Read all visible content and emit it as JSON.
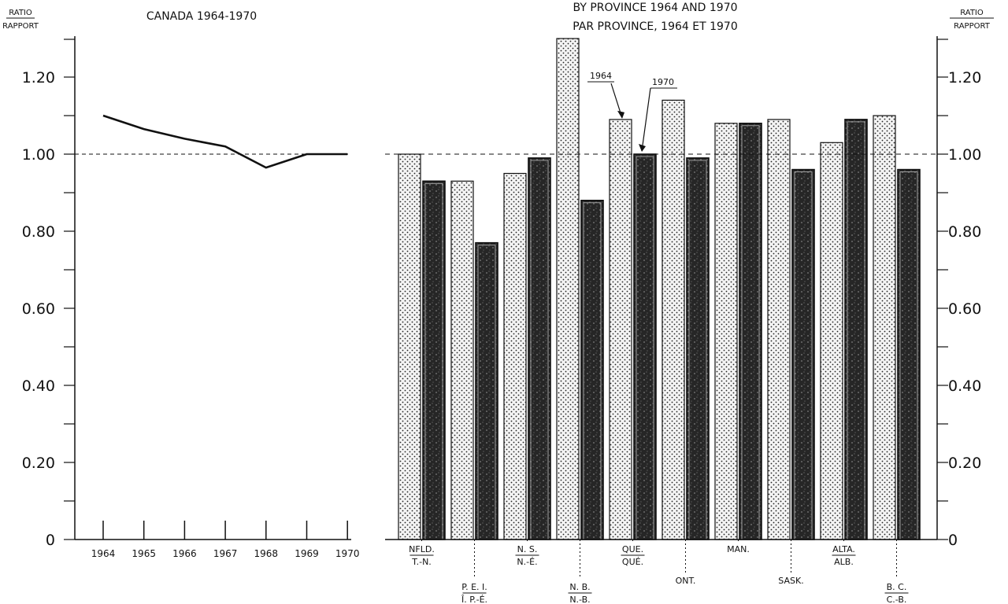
{
  "chart_data": [
    {
      "type": "line",
      "title": "CANADA 1964-1970",
      "ylabel": "RATIO",
      "ylabel_fr": "RAPPORT",
      "x": [
        "1964",
        "1965",
        "1966",
        "1967",
        "1968",
        "1969",
        "1970"
      ],
      "series": [
        {
          "values": [
            1.1,
            1.065,
            1.04,
            1.02,
            0.965,
            1.0,
            1.0
          ]
        }
      ],
      "y_ticks": [
        "0",
        "0.20",
        "0.40",
        "0.60",
        "0.80",
        "1.00",
        "1.20"
      ],
      "ylim": [
        0,
        1.3
      ],
      "reference_line": 1.0
    },
    {
      "type": "bar",
      "title_line1": "BY PROVINCE 1964 AND 1970",
      "title_line2": "PAR PROVINCE, 1964 ET 1970",
      "ylabel": "RATIO",
      "ylabel_fr": "RAPPORT",
      "categories": [
        {
          "en": "NFLD.",
          "fr": "T.-N."
        },
        {
          "en": "P. E. I.",
          "fr": "Î. P.-É."
        },
        {
          "en": "N. S.",
          "fr": "N.-É."
        },
        {
          "en": "N. B.",
          "fr": "N.-B."
        },
        {
          "en": "QUE.",
          "fr": "QUÉ."
        },
        {
          "en": "ONT.",
          "fr": ""
        },
        {
          "en": "MAN.",
          "fr": ""
        },
        {
          "en": "SASK.",
          "fr": ""
        },
        {
          "en": "ALTA.",
          "fr": "ALB."
        },
        {
          "en": "B. C.",
          "fr": "C.-B."
        }
      ],
      "series": [
        {
          "name": "1964",
          "values": [
            1.0,
            0.93,
            0.95,
            1.3,
            1.09,
            1.14,
            1.08,
            1.09,
            1.03,
            1.1
          ]
        },
        {
          "name": "1970",
          "values": [
            0.93,
            0.77,
            0.99,
            0.88,
            1.0,
            0.99,
            1.08,
            0.96,
            1.09,
            0.96
          ]
        }
      ],
      "y_ticks": [
        "0",
        "0.20",
        "0.40",
        "0.60",
        "0.80",
        "1.00",
        "1.20"
      ],
      "ylim": [
        0,
        1.3
      ],
      "reference_line": 1.0,
      "pattern_1964": "dotted",
      "pattern_1970": "dark"
    }
  ]
}
